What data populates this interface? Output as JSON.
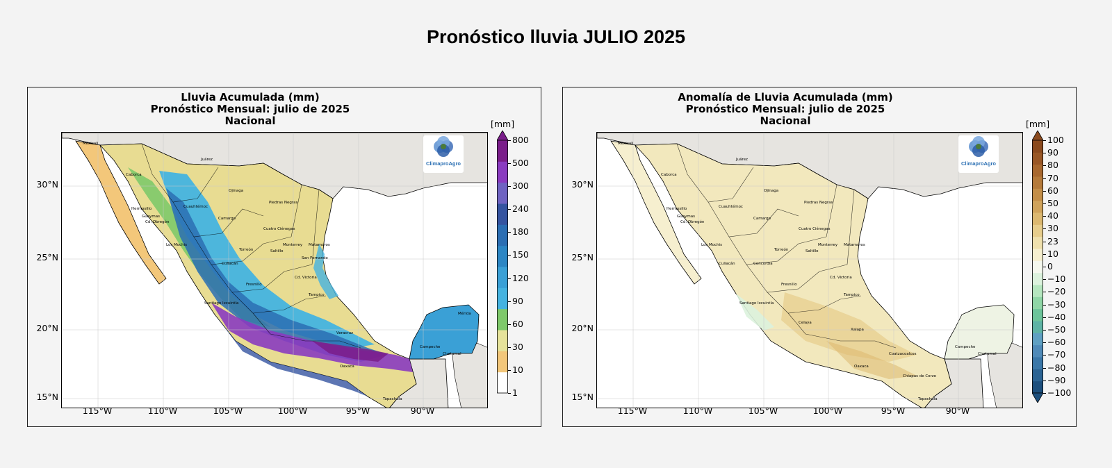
{
  "header": {
    "title": "Pronóstico lluvia JULIO 2025"
  },
  "left_panel": {
    "title_line1": "Lluvia Acumulada (mm)",
    "title_line2": "Pronóstico Mensual: julio de 2025",
    "title_line3": "Nacional",
    "colorbar_unit": "[mm]",
    "colorbar_ticks": [
      "800",
      "500",
      "300",
      "240",
      "180",
      "150",
      "120",
      "90",
      "60",
      "30",
      "10",
      "1"
    ],
    "colorbar_colors": [
      "#ffffff",
      "#f3c77a",
      "#e6e39a",
      "#7ec96a",
      "#45b3e0",
      "#3aa0d6",
      "#2c86c4",
      "#2b6eb3",
      "#3554a0",
      "#6f63c2",
      "#8a3bc0",
      "#7a1d8a"
    ],
    "logo_text": "ClimaproAgro"
  },
  "right_panel": {
    "title_line1": "Anomalía de Lluvia Acumulada (mm)",
    "title_line2": "Pronóstico Mensual: julio de 2025",
    "title_line3": "Nacional",
    "colorbar_unit": "[mm]",
    "colorbar_ticks": [
      "100",
      "90",
      "80",
      "70",
      "60",
      "50",
      "40",
      "30",
      "23",
      "10",
      "0",
      "−10",
      "−20",
      "−30",
      "−40",
      "−50",
      "−60",
      "−70",
      "−80",
      "−90",
      "−100"
    ],
    "colorbar_colors": [
      "#1c4f7d",
      "#2a6393",
      "#3a77a8",
      "#4f8ab8",
      "#5fa0c2",
      "#5eb3a5",
      "#6cc49a",
      "#8fd6a6",
      "#b5e6bf",
      "#dcf2dd",
      "#f5f8ee",
      "#f6efcf",
      "#efe0ad",
      "#e7cd8c",
      "#dcb870",
      "#d0a35b",
      "#c38e48",
      "#b57a3a",
      "#a8682f",
      "#995726",
      "#8b4a1e"
    ],
    "logo_text": "ClimaproAgro"
  },
  "axes": {
    "lat_labels": [
      "30°N",
      "25°N",
      "20°N",
      "15°N"
    ],
    "lon_labels": [
      "115°W",
      "110°W",
      "105°W",
      "100°W",
      "95°W",
      "90°W"
    ]
  },
  "map_labels": {
    "left": [
      "Mexicali",
      "Juárez",
      "Caborca",
      "Hermosillo",
      "Guaymas",
      "Cd. Obregón",
      "Cuauhtémoc",
      "Piedras Negras",
      "Ojinaga",
      "Camargo",
      "Cuatro Ciénegas",
      "Los Mochis",
      "Torreón",
      "Saltillo",
      "Monterrey",
      "Matamoros",
      "San Fernando",
      "Culiacán",
      "Fresnillo",
      "Cd. Victoria",
      "Santiago Ixcuintla",
      "Tampico",
      "Veracruz",
      "Oaxaca",
      "Campeche",
      "Mérida",
      "Chetumal",
      "Tapachula"
    ],
    "right": [
      "Mexicali",
      "Juárez",
      "Caborca",
      "Hermosillo",
      "Guaymas",
      "Cd. Obregón",
      "Cuauhtémoc",
      "Piedras Negras",
      "Ojinaga",
      "Camargo",
      "Cuatro Ciénegas",
      "Los Mochis",
      "Torreón",
      "Saltillo",
      "Monterrey",
      "Matamoros",
      "Culiacán",
      "Concordia",
      "Fresnillo",
      "Cd. Victoria",
      "Santiago Ixcuintla",
      "Celaya",
      "Tampico",
      "Xalapa",
      "Coatzacoalcos",
      "Oaxaca",
      "Chiapas de Corzo",
      "Campeche",
      "Chetumal",
      "Tapachula"
    ]
  }
}
